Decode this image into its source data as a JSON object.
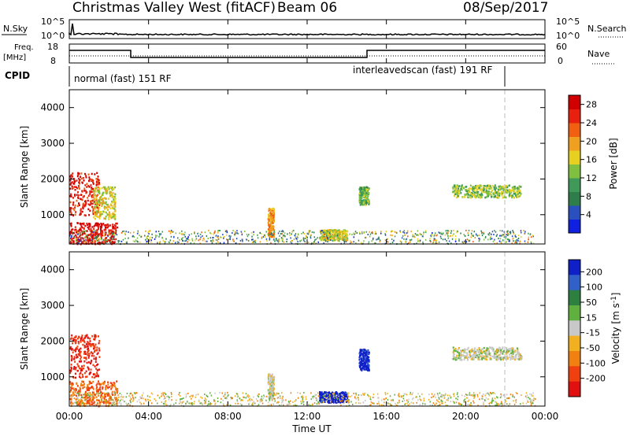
{
  "header": {
    "title": "Christmas Valley West (fitACF)",
    "beam": "Beam 06",
    "date": "08/Sep/2017"
  },
  "top_panels": {
    "nsky_label": "N.Sky",
    "nsearch_label": "N.Search",
    "nsky_ticks": [
      "10^5",
      "10^0"
    ],
    "nsearch_ticks": [
      "10^5",
      "10^0"
    ],
    "freq_label": "Freq.",
    "freq_unit": "[MHz]",
    "freq_ticks": [
      "18",
      "8"
    ],
    "nave_label": "Nave",
    "nave_ticks": [
      "60",
      "0"
    ],
    "cpid_label": "CPID",
    "cpid_left": "normal (fast) 151 RF",
    "cpid_right": "interleavedscan (fast) 191 RF"
  },
  "axes": {
    "ylabel": "Slant Range [km]",
    "xlabel": "Time UT",
    "yticks": [
      "4000",
      "3000",
      "2000",
      "1000"
    ],
    "xticks": [
      "00:00",
      "04:00",
      "08:00",
      "12:00",
      "16:00",
      "20:00",
      "00:00"
    ]
  },
  "colors": {
    "power": [
      "#1020e0",
      "#2a50c0",
      "#2e7d4a",
      "#3f9a5a",
      "#7fc040",
      "#e8d020",
      "#f0a020",
      "#f06010",
      "#e82010",
      "#d00000"
    ],
    "velocity": [
      "#1020c8",
      "#3060c8",
      "#2e8040",
      "#60b040",
      "#c8c8c8",
      "#f0b020",
      "#f08010",
      "#f04010",
      "#e01010"
    ]
  },
  "colorbars": {
    "power": {
      "label": "Power [dB]",
      "ticks": [
        "28",
        "24",
        "20",
        "16",
        "12",
        "8",
        "4"
      ]
    },
    "velocity": {
      "label": "Velocity [m s",
      "label_sup": "-1",
      "label_end": "]",
      "ticks": [
        "200",
        "100",
        "50",
        "15",
        "-15",
        "-50",
        "-100",
        "-200"
      ]
    }
  },
  "chart_data": [
    {
      "type": "heatmap",
      "title": "",
      "panel": "Power",
      "xlabel": "Time UT",
      "ylabel": "Slant Range [km]",
      "x_range_hours_ut": [
        0,
        24
      ],
      "y_range_km": [
        180,
        4500
      ],
      "colorbar": {
        "label": "Power [dB]",
        "ticks": [
          28,
          24,
          20,
          16,
          12,
          8,
          4
        ]
      },
      "features": [
        {
          "t_start_h": 0.0,
          "t_end_h": 2.4,
          "r_min_km": 200,
          "r_max_km": 800,
          "power_db": 28
        },
        {
          "t_start_h": 0.0,
          "t_end_h": 1.5,
          "r_min_km": 1000,
          "r_max_km": 2200,
          "power_db": 26
        },
        {
          "t_start_h": 1.2,
          "t_end_h": 2.3,
          "r_min_km": 900,
          "r_max_km": 1800,
          "power_db": 16
        },
        {
          "t_start_h": 10.0,
          "t_end_h": 10.3,
          "r_min_km": 400,
          "r_max_km": 1200,
          "power_db": 20
        },
        {
          "t_start_h": 12.6,
          "t_end_h": 14.0,
          "r_min_km": 300,
          "r_max_km": 600,
          "power_db": 16
        },
        {
          "t_start_h": 14.6,
          "t_end_h": 15.1,
          "r_min_km": 1300,
          "r_max_km": 1800,
          "power_db": 12
        },
        {
          "t_start_h": 19.3,
          "t_end_h": 22.8,
          "r_min_km": 1500,
          "r_max_km": 1850,
          "power_db": 14
        }
      ]
    },
    {
      "type": "heatmap",
      "title": "",
      "panel": "Velocity",
      "xlabel": "Time UT",
      "ylabel": "Slant Range [km]",
      "x_range_hours_ut": [
        0,
        24
      ],
      "y_range_km": [
        180,
        4500
      ],
      "colorbar": {
        "label": "Velocity [m s-1]",
        "ticks": [
          200,
          100,
          50,
          15,
          -15,
          -50,
          -100,
          -200
        ]
      },
      "features": [
        {
          "t_start_h": 0.0,
          "t_end_h": 2.4,
          "r_min_km": 200,
          "r_max_km": 900,
          "velocity_ms": -100
        },
        {
          "t_start_h": 0.0,
          "t_end_h": 1.5,
          "r_min_km": 1000,
          "r_max_km": 2200,
          "velocity_ms": -200
        },
        {
          "t_start_h": 10.0,
          "t_end_h": 10.3,
          "r_min_km": 400,
          "r_max_km": 1100,
          "velocity_ms": 0
        },
        {
          "t_start_h": 12.6,
          "t_end_h": 14.0,
          "r_min_km": 300,
          "r_max_km": 600,
          "velocity_ms": 250
        },
        {
          "t_start_h": 14.6,
          "t_end_h": 15.1,
          "r_min_km": 1200,
          "r_max_km": 1800,
          "velocity_ms": 220
        },
        {
          "t_start_h": 19.3,
          "t_end_h": 22.8,
          "r_min_km": 1500,
          "r_max_km": 1850,
          "velocity_ms": 0
        }
      ]
    }
  ]
}
